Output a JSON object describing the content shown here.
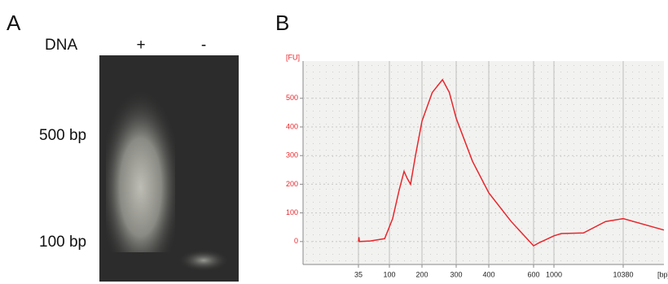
{
  "panel_a": {
    "letter": "A",
    "lane_header": "DNA",
    "lane_plus": "+",
    "lane_minus": "-",
    "marker_high": "500 bp",
    "marker_low": "100 bp"
  },
  "chart_data": {
    "type": "line",
    "letter": "B",
    "ylabel": "[FU]",
    "xlabel": "[bp]",
    "x": [
      35,
      36,
      37,
      60,
      90,
      110,
      130,
      145,
      155,
      165,
      180,
      200,
      230,
      260,
      280,
      300,
      350,
      400,
      500,
      600,
      700,
      1000,
      2000,
      5000,
      8000,
      10380,
      15000
    ],
    "values": [
      0,
      15,
      0,
      2,
      10,
      80,
      180,
      245,
      220,
      200,
      300,
      420,
      520,
      565,
      520,
      430,
      280,
      170,
      70,
      -15,
      -5,
      20,
      28,
      30,
      70,
      80,
      40
    ],
    "color": "#e8262b",
    "xlim": [
      15,
      15000
    ],
    "xticks": [
      35,
      100,
      200,
      300,
      400,
      600,
      1000,
      10380
    ],
    "ylim": [
      -80,
      630
    ],
    "yticks": [
      0,
      100,
      200,
      300,
      400,
      500
    ],
    "grid": true
  }
}
